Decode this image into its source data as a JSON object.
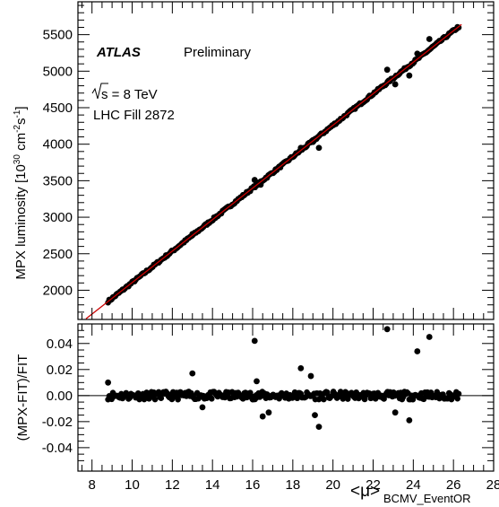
{
  "chart_data": [
    {
      "type": "scatter",
      "panel": "main",
      "experiment": "ATLAS",
      "status": "Preliminary",
      "energy_label": "s = 8 TeV",
      "fill_label": "LHC Fill 2872",
      "xlim": [
        7.3,
        28
      ],
      "ylim": [
        1600,
        5950
      ],
      "y_ticks": [
        2000,
        2500,
        3000,
        3500,
        4000,
        4500,
        5000,
        5500
      ],
      "grid": false,
      "ylabel": {
        "prefix": "MPX luminosity [10",
        "exp1": "30",
        "mid": " cm",
        "exp2": "-2",
        "mid2": "s",
        "exp3": "-1",
        "suffix": "]"
      },
      "fit": {
        "slope": 215.5,
        "intercept": -50,
        "x_range": [
          7.7,
          26.4
        ],
        "color": "#cc0000"
      },
      "points_band": {
        "x_range": [
          8.8,
          26.3
        ],
        "description_free": true
      },
      "outliers": [
        {
          "x": 13.0,
          "y": 2770
        },
        {
          "x": 16.1,
          "y": 3510
        },
        {
          "x": 16.4,
          "y": 3445
        },
        {
          "x": 18.4,
          "y": 3950
        },
        {
          "x": 19.0,
          "y": 4030
        },
        {
          "x": 19.3,
          "y": 3950
        },
        {
          "x": 22.7,
          "y": 5020
        },
        {
          "x": 23.1,
          "y": 4820
        },
        {
          "x": 23.8,
          "y": 4940
        },
        {
          "x": 24.2,
          "y": 5240
        },
        {
          "x": 24.8,
          "y": 5440
        }
      ],
      "point_color": "#000000"
    },
    {
      "type": "scatter",
      "panel": "ratio",
      "ylabel": "(MPX-FIT)/FIT",
      "xlabel_main": "<μ>",
      "xlabel_sub": "BCMV_EventOR",
      "xlim": [
        7.3,
        28
      ],
      "ylim": [
        -0.058,
        0.055
      ],
      "x_ticks": [
        8,
        10,
        12,
        14,
        16,
        18,
        20,
        22,
        24,
        26,
        28
      ],
      "y_ticks": [
        -0.04,
        -0.02,
        0.0,
        0.02,
        0.04
      ],
      "y_tick_labels": [
        "-0.04",
        "-0.02",
        "0.00",
        "0.02",
        "0.04"
      ],
      "reference_line": 0.0,
      "outliers": [
        {
          "x": 8.8,
          "y": 0.01
        },
        {
          "x": 13.0,
          "y": 0.017
        },
        {
          "x": 13.5,
          "y": -0.009
        },
        {
          "x": 16.1,
          "y": 0.042
        },
        {
          "x": 16.2,
          "y": 0.011
        },
        {
          "x": 16.5,
          "y": -0.016
        },
        {
          "x": 16.8,
          "y": -0.013
        },
        {
          "x": 18.4,
          "y": 0.021
        },
        {
          "x": 18.9,
          "y": 0.015
        },
        {
          "x": 19.1,
          "y": -0.015
        },
        {
          "x": 19.3,
          "y": -0.024
        },
        {
          "x": 22.7,
          "y": 0.051
        },
        {
          "x": 23.1,
          "y": -0.013
        },
        {
          "x": 23.8,
          "y": -0.019
        },
        {
          "x": 24.2,
          "y": 0.034
        },
        {
          "x": 24.8,
          "y": 0.045
        }
      ]
    }
  ]
}
